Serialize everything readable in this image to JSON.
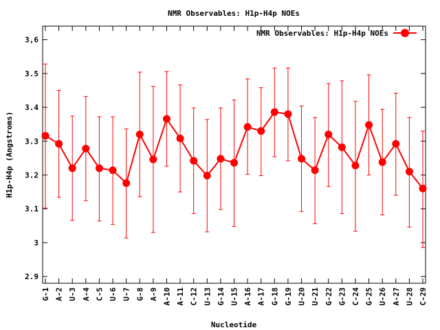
{
  "chart_data": {
    "type": "line",
    "title": "NMR Observables: H1p-H4p NOEs",
    "xlabel": "Nucleotide",
    "ylabel": "H1p-H4p (Angstroms)",
    "ylim": [
      2.88,
      3.64
    ],
    "yticks": [
      2.9,
      3,
      3.1,
      3.2,
      3.3,
      3.4,
      3.5,
      3.6
    ],
    "ytick_labels": [
      "2.9",
      "3",
      "3.1",
      "3.2",
      "3.3",
      "3.4",
      "3.5",
      "3,6"
    ],
    "grid": false,
    "legend": {
      "position": "top-right"
    },
    "categories": [
      "G-1",
      "A-2",
      "U-3",
      "A-4",
      "C-5",
      "U-6",
      "U-7",
      "G-8",
      "A-9",
      "A-10",
      "A-11",
      "C-12",
      "U-13",
      "G-14",
      "U-15",
      "A-16",
      "A-17",
      "G-18",
      "G-19",
      "U-20",
      "U-21",
      "G-22",
      "G-23",
      "C-24",
      "G-25",
      "U-26",
      "A-27",
      "U-28",
      "C-29"
    ],
    "series": [
      {
        "name": "NMR Observables: H1p-H4p NOEs",
        "color": "#ff0000",
        "values": [
          3.316,
          3.292,
          3.22,
          3.278,
          3.22,
          3.214,
          3.176,
          3.32,
          3.246,
          3.366,
          3.308,
          3.242,
          3.198,
          3.248,
          3.236,
          3.342,
          3.33,
          3.386,
          3.38,
          3.248,
          3.214,
          3.32,
          3.282,
          3.228,
          3.348,
          3.238,
          3.292,
          3.21,
          3.16
        ],
        "err_low": [
          3.102,
          3.134,
          3.066,
          3.124,
          3.064,
          3.054,
          3.014,
          3.136,
          3.03,
          3.226,
          3.15,
          3.086,
          3.032,
          3.098,
          3.048,
          3.202,
          3.198,
          3.254,
          3.242,
          3.092,
          3.056,
          3.166,
          3.086,
          3.034,
          3.2,
          3.082,
          3.14,
          3.046,
          2.986
        ],
        "err_high": [
          3.528,
          3.45,
          3.374,
          3.432,
          3.372,
          3.372,
          3.336,
          3.504,
          3.462,
          3.506,
          3.466,
          3.398,
          3.364,
          3.398,
          3.422,
          3.484,
          3.458,
          3.516,
          3.516,
          3.404,
          3.37,
          3.47,
          3.478,
          3.418,
          3.496,
          3.394,
          3.442,
          3.37,
          3.33
        ]
      }
    ]
  }
}
